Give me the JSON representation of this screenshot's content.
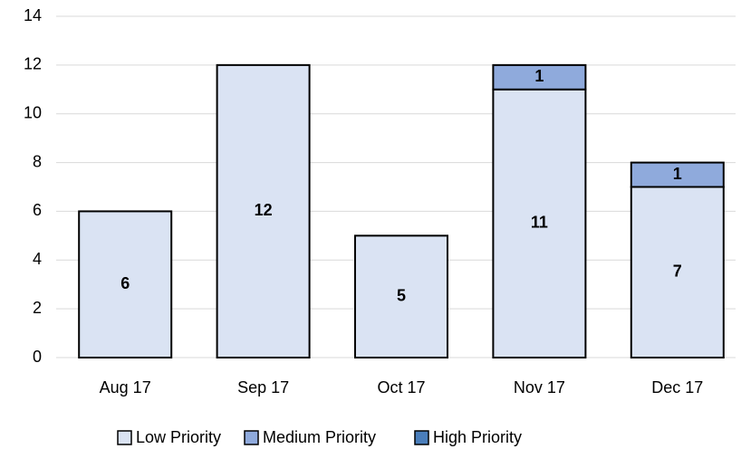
{
  "chart_data": {
    "type": "stacked_bar",
    "categories": [
      "Aug 17",
      "Sep 17",
      "Oct 17",
      "Nov 17",
      "Dec 17"
    ],
    "series": [
      {
        "name": "Low Priority",
        "color": "#dae3f3",
        "values": [
          6,
          12,
          5,
          11,
          7
        ]
      },
      {
        "name": "Medium Priority",
        "color": "#8faadc",
        "values": [
          0,
          0,
          0,
          1,
          1
        ]
      },
      {
        "name": "High Priority",
        "color": "#4a7ebb",
        "values": [
          0,
          0,
          0,
          0,
          0
        ]
      }
    ],
    "ylim": [
      0,
      14
    ],
    "yticks": [
      0,
      2,
      4,
      6,
      8,
      10,
      12,
      14
    ],
    "grid": true,
    "legend": "bottom"
  }
}
